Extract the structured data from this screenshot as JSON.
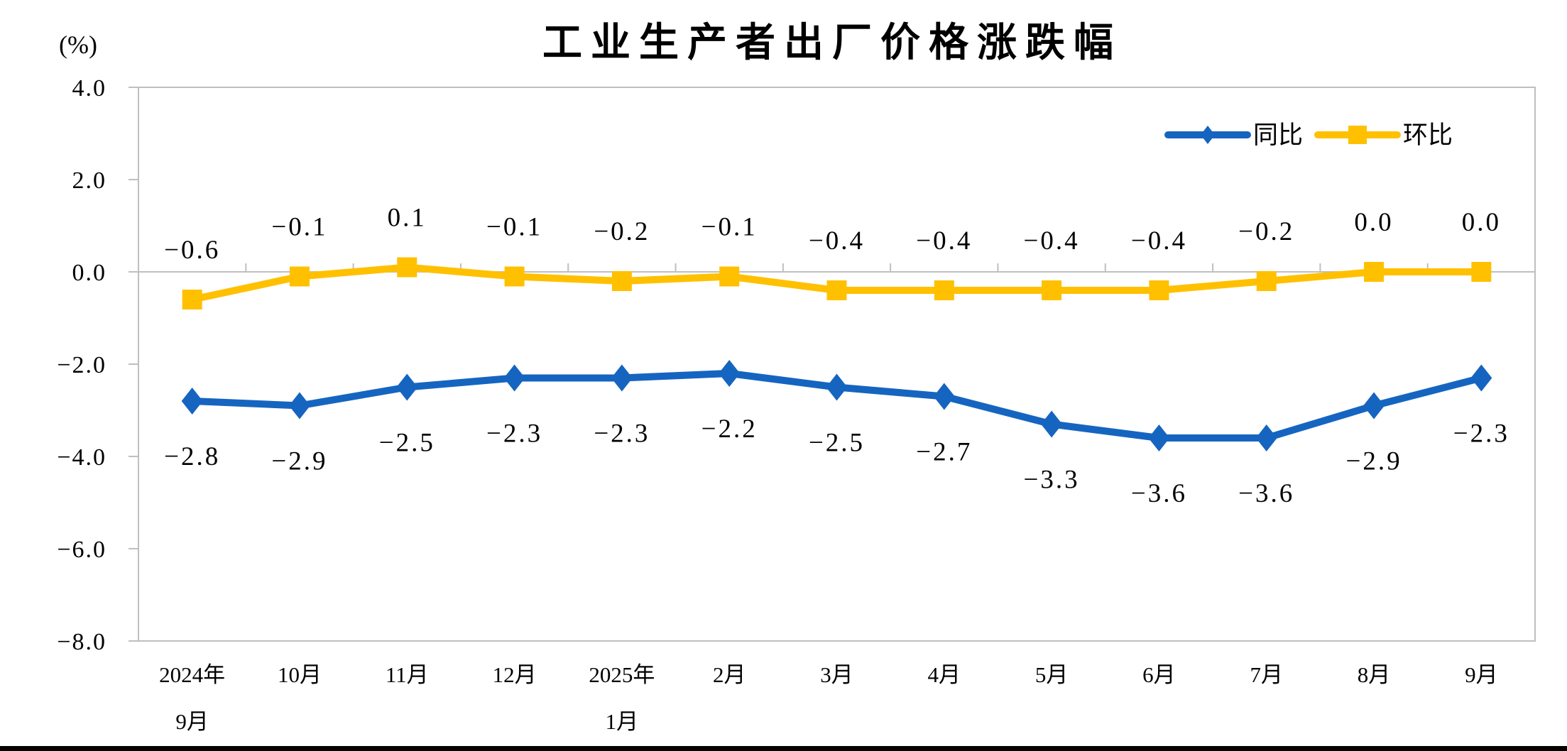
{
  "page": {
    "background": "#FFFFFF",
    "bottom_bar_color": "#000000"
  },
  "chart_data": {
    "type": "line",
    "title": "工业生产者出厂价格涨跌幅",
    "unit_label": "(%)",
    "categories": [
      "2024年9月",
      "10月",
      "11月",
      "12月",
      "2025年1月",
      "2月",
      "3月",
      "4月",
      "5月",
      "6月",
      "7月",
      "8月",
      "9月"
    ],
    "category_lines": [
      [
        "2024年",
        "9月"
      ],
      [
        "10月"
      ],
      [
        "11月"
      ],
      [
        "12月"
      ],
      [
        "2025年",
        "1月"
      ],
      [
        "2月"
      ],
      [
        "3月"
      ],
      [
        "4月"
      ],
      [
        "5月"
      ],
      [
        "6月"
      ],
      [
        "7月"
      ],
      [
        "8月"
      ],
      [
        "9月"
      ]
    ],
    "series": [
      {
        "key": "yoy",
        "name": "同比",
        "color": "#1565C0",
        "marker": "diamond",
        "label_position": "below",
        "values": [
          -2.8,
          -2.9,
          -2.5,
          -2.3,
          -2.3,
          -2.2,
          -2.5,
          -2.7,
          -3.3,
          -3.6,
          -3.6,
          -2.9,
          -2.3
        ]
      },
      {
        "key": "mom",
        "name": "环比",
        "color": "#FFC000",
        "marker": "square",
        "label_position": "above",
        "values": [
          -0.6,
          -0.1,
          0.1,
          -0.1,
          -0.2,
          -0.1,
          -0.4,
          -0.4,
          -0.4,
          -0.4,
          -0.2,
          0.0,
          0.0
        ]
      }
    ],
    "ylim": [
      -8.0,
      4.0
    ],
    "ytick_labels": [
      "4.0",
      "2.0",
      "0.0",
      "-2.0",
      "-4.0",
      "-6.0",
      "-8.0"
    ],
    "grid": false,
    "legend_position": "top-right",
    "axis_color": "#BFBFBF",
    "text_color": "#000000"
  }
}
